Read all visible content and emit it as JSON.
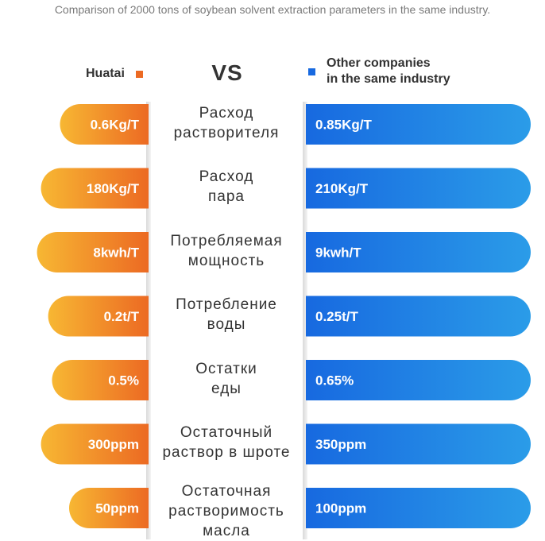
{
  "subtitle": "Comparison of 2000 tons of soybean solvent extraction parameters in the same industry.",
  "vs_text": "VS",
  "colors": {
    "orange_start": "#f7b733",
    "orange_end": "#ec6a23",
    "blue_start": "#1769e0",
    "blue_end": "#2b9ce8",
    "legend_orange": "#ec6a23",
    "legend_blue": "#1769e0"
  },
  "chart_data": {
    "type": "bar",
    "orientation": "horizontal-butterfly",
    "title": "",
    "categories": [
      "Расход растворителя",
      "Расход пара",
      "Потребляемая мощность",
      "Потребление воды",
      "Остатки еды",
      "Остаточный раствор в шроте",
      "Остаточная растворимость масла"
    ],
    "category_lines": [
      [
        "Расход",
        "растворителя"
      ],
      [
        "Расход",
        "пара"
      ],
      [
        "Потребляемая",
        "мощность"
      ],
      [
        "Потребление",
        "воды"
      ],
      [
        "Остатки",
        "еды"
      ],
      [
        "Остаточный",
        "раствор в шроте"
      ],
      [
        "Остаточная",
        "растворимость",
        "масла"
      ]
    ],
    "series": [
      {
        "name": "Huatai",
        "side": "left",
        "labels": [
          "0.6Kg/T",
          "180Kg/T",
          "8kwh/T",
          "0.2t/T",
          "0.5%",
          "300ppm",
          "50ppm"
        ],
        "values": [
          0.6,
          180,
          8,
          0.2,
          0.5,
          300,
          50
        ]
      },
      {
        "name": "Other companies in the same industry",
        "name_lines": [
          "Other companies",
          "in the same industry"
        ],
        "side": "right",
        "labels": [
          "0.85Kg/T",
          "210Kg/T",
          "9kwh/T",
          "0.25t/T",
          "0.65%",
          "350ppm",
          "100ppm"
        ],
        "values": [
          0.85,
          210,
          9,
          0.25,
          0.65,
          350,
          100
        ]
      }
    ],
    "legend": "top"
  }
}
